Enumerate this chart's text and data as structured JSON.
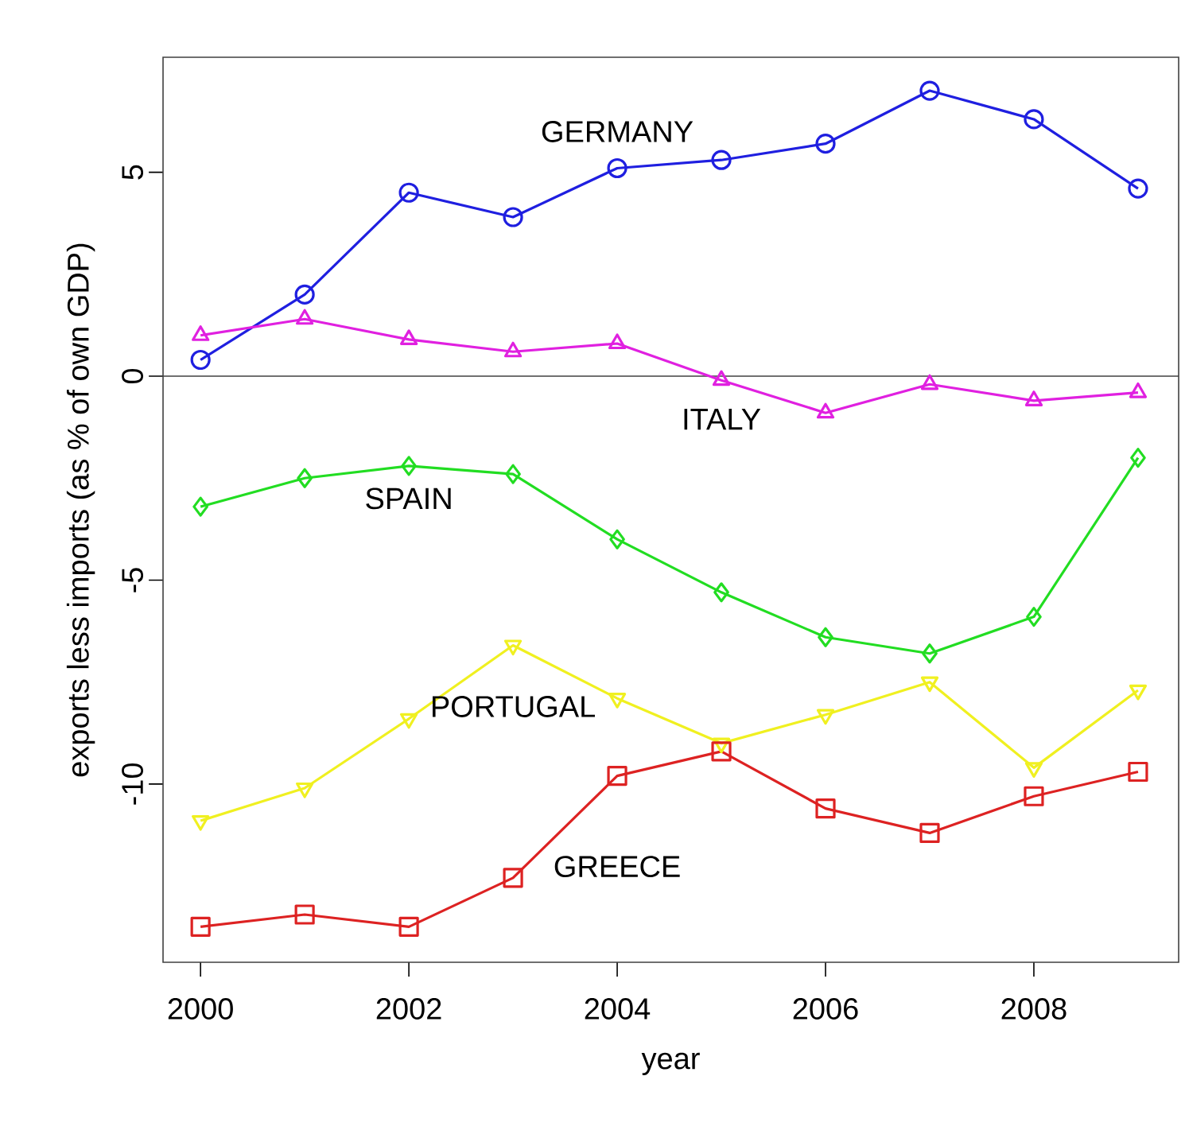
{
  "chart_data": {
    "type": "line",
    "xlabel": "year",
    "ylabel": "exports less imports (as % of own GDP)",
    "x": [
      2000,
      2001,
      2002,
      2003,
      2004,
      2005,
      2006,
      2007,
      2008,
      2009
    ],
    "xlim": [
      1999.64,
      2009.39
    ],
    "ylim": [
      -14.37,
      7.82
    ],
    "xticks": [
      2000,
      2002,
      2004,
      2006,
      2008
    ],
    "yticks": [
      -10,
      -5,
      0,
      5
    ],
    "series": [
      {
        "name": "GERMANY",
        "color": "#1f1fe0",
        "marker": "circle",
        "values": [
          0.4,
          2.0,
          4.5,
          3.9,
          5.1,
          5.3,
          5.7,
          7.0,
          6.3,
          4.6
        ]
      },
      {
        "name": "ITALY",
        "color": "#e020e0",
        "marker": "triangle",
        "values": [
          1.0,
          1.4,
          0.9,
          0.6,
          0.8,
          -0.1,
          -0.9,
          -0.2,
          -0.6,
          -0.4
        ]
      },
      {
        "name": "SPAIN",
        "color": "#22dd22",
        "marker": "diamond",
        "values": [
          -3.2,
          -2.5,
          -2.2,
          -2.4,
          -4.0,
          -5.3,
          -6.4,
          -6.8,
          -5.9,
          -2.0
        ]
      },
      {
        "name": "PORTUGAL",
        "color": "#f0f020",
        "marker": "triangle down",
        "values": [
          -10.9,
          -10.1,
          -8.4,
          -6.6,
          -7.9,
          -9.0,
          -8.3,
          -7.5,
          -9.6,
          -7.7
        ]
      },
      {
        "name": "GREECE",
        "color": "#dd2222",
        "marker": "square",
        "values": [
          -13.5,
          -13.2,
          -13.5,
          -12.3,
          -9.8,
          -9.2,
          -10.6,
          -11.2,
          -10.3,
          -9.7
        ]
      }
    ],
    "ref_lines": [
      {
        "axis": "y",
        "value": 0
      }
    ]
  }
}
